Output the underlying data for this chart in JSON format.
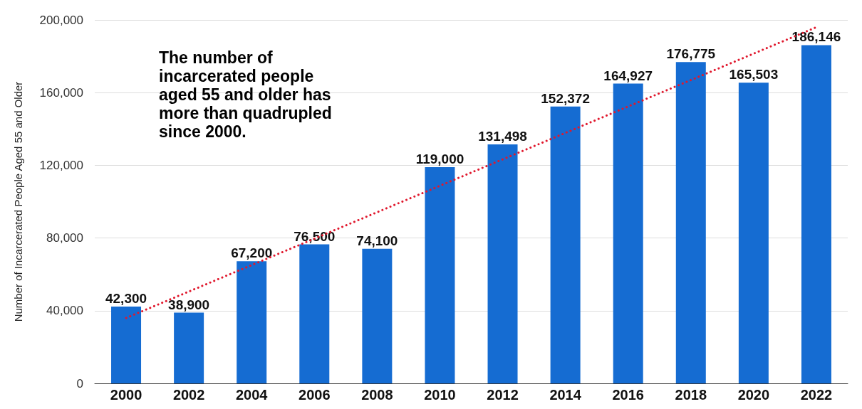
{
  "chart_data": {
    "type": "bar",
    "ylabel": "Number of Incarcerated People Aged 55 and Older",
    "categories": [
      "2000",
      "2002",
      "2004",
      "2006",
      "2008",
      "2010",
      "2012",
      "2014",
      "2016",
      "2018",
      "2020",
      "2022"
    ],
    "series": [
      {
        "color": "#156cd2",
        "values": [
          42300,
          38900,
          67200,
          76500,
          74100,
          119000,
          131498,
          152372,
          164927,
          176775,
          165503,
          186146
        ],
        "value_labels": [
          "42,300",
          "38,900",
          "67,200",
          "76,500",
          "74,100",
          "119,000",
          "131,498",
          "152,372",
          "164,927",
          "176,775",
          "165,503",
          "186,146"
        ]
      },
      {
        "type": "line",
        "color": "#e0182d",
        "line_style": "dotted",
        "marker": "none",
        "values": [
          36000,
          null,
          null,
          null,
          null,
          null,
          null,
          null,
          null,
          null,
          null,
          196000
        ]
      }
    ],
    "ylim": [
      0,
      200000
    ],
    "yticks": [
      0,
      {
        "value": 40000,
        "label": "40,000"
      },
      {
        "value": 80000,
        "label": "80,000"
      },
      {
        "value": 120000,
        "label": "120,000"
      },
      {
        "value": 160000,
        "label": "160,000"
      },
      {
        "value": 200000,
        "label": "200,000"
      }
    ],
    "grid": "y",
    "annotations": [
      "The number of incarcerated people aged 55 and older has more than quadrupled since 2000."
    ]
  }
}
